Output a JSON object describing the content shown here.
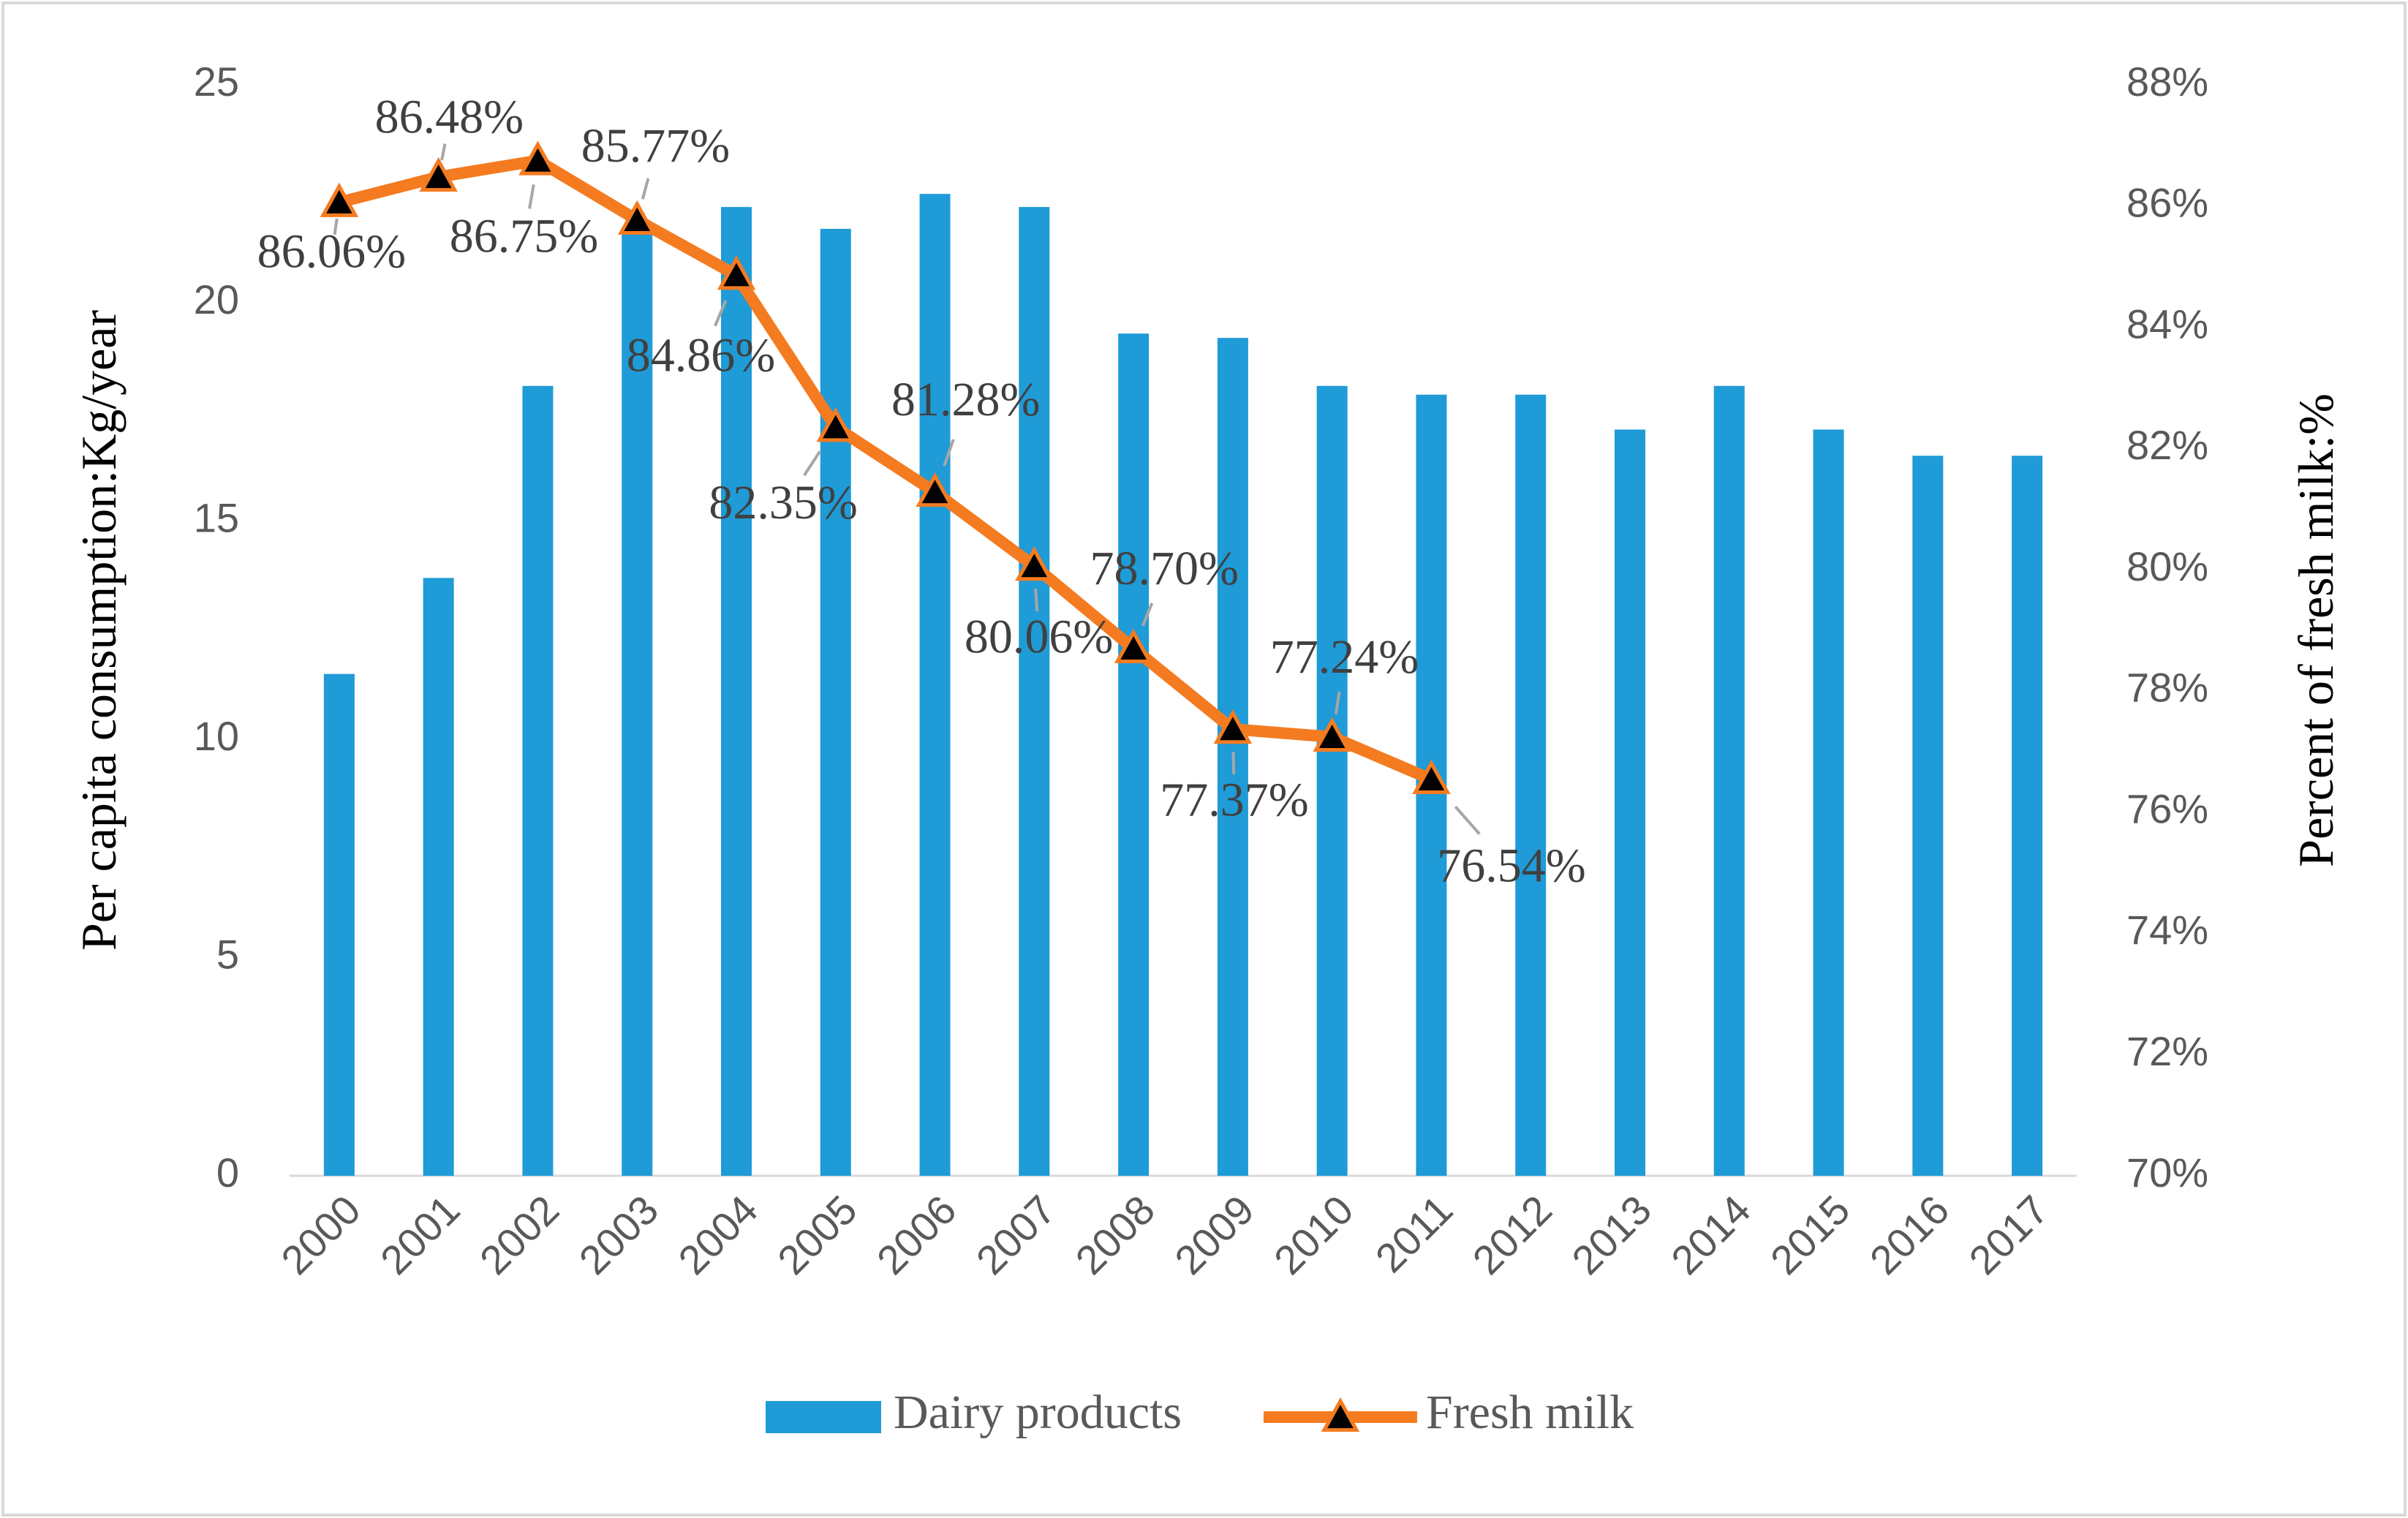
{
  "chart_data": {
    "type": "bar",
    "categories": [
      "2000",
      "2001",
      "2002",
      "2003",
      "2004",
      "2005",
      "2006",
      "2007",
      "2008",
      "2009",
      "2010",
      "2011",
      "2012",
      "2013",
      "2014",
      "2015",
      "2016",
      "2017"
    ],
    "series": [
      {
        "name": "Dairy products",
        "type": "bar",
        "color": "#1f9bd7",
        "values": [
          11.5,
          13.7,
          18.1,
          21.7,
          22.2,
          21.7,
          22.5,
          22.2,
          19.3,
          19.2,
          18.1,
          17.9,
          17.9,
          17.1,
          18.1,
          17.1,
          16.5,
          16.5
        ]
      },
      {
        "name": "Fresh milk",
        "type": "line",
        "color": "#f47b20",
        "axis": "y2",
        "marker_color": "#000000",
        "values": [
          86.06,
          86.48,
          86.75,
          85.77,
          84.86,
          82.35,
          81.28,
          80.06,
          78.7,
          77.37,
          77.24,
          76.54,
          null,
          null,
          null,
          null,
          null,
          null
        ],
        "value_labels": [
          "86.06%",
          "86.48%",
          "86.75%",
          "85.77%",
          "84.86%",
          "82.35%",
          "81.28%",
          "80.06%",
          "78.70%",
          "77.37%",
          "77.24%",
          "76.54%",
          null,
          null,
          null,
          null,
          null,
          null
        ]
      }
    ],
    "ylabel": "Per capita consumption:Kg/year",
    "y2label": "Percent of fresh milk:%",
    "ylim": [
      0,
      25
    ],
    "yticks": [
      0,
      5,
      10,
      15,
      20,
      25
    ],
    "y2lim": [
      70,
      88
    ],
    "y2ticks": [
      {
        "value": 70,
        "label": "70%"
      },
      {
        "value": 72,
        "label": "72%"
      },
      {
        "value": 74,
        "label": "74%"
      },
      {
        "value": 76,
        "label": "76%"
      },
      {
        "value": 78,
        "label": "78%"
      },
      {
        "value": 80,
        "label": "80%"
      },
      {
        "value": 82,
        "label": "82%"
      },
      {
        "value": 84,
        "label": "84%"
      },
      {
        "value": 86,
        "label": "86%"
      },
      {
        "value": 88,
        "label": "88%"
      }
    ],
    "grid": false,
    "legend": "bottom"
  }
}
